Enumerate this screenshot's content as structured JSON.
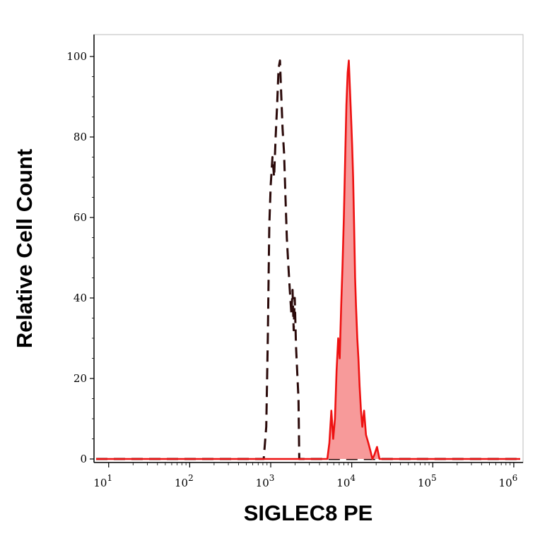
{
  "chart_data": {
    "type": "area",
    "xlabel": "SIGLEC8 PE",
    "ylabel": "Relative Cell Count",
    "x_scale": "log",
    "xlim": [
      7,
      1200000
    ],
    "ylim": [
      0,
      100
    ],
    "y_ticks": [
      0,
      20,
      40,
      60,
      80,
      100
    ],
    "x_ticks": [
      {
        "value": 10,
        "base": "10",
        "exp": "1"
      },
      {
        "value": 100,
        "base": "10",
        "exp": "2"
      },
      {
        "value": 1000,
        "base": "10",
        "exp": "3"
      },
      {
        "value": 10000,
        "base": "10",
        "exp": "4"
      },
      {
        "value": 100000,
        "base": "10",
        "exp": "5"
      },
      {
        "value": 1000000,
        "base": "10",
        "exp": "6"
      }
    ],
    "grid": false,
    "legend": "none",
    "series": [
      {
        "style": "dashed-line",
        "color": "#2b0a0a",
        "points": [
          [
            7,
            0
          ],
          [
            700,
            0
          ],
          [
            820,
            0
          ],
          [
            880,
            8
          ],
          [
            920,
            30
          ],
          [
            960,
            58
          ],
          [
            1000,
            68
          ],
          [
            1050,
            75
          ],
          [
            1100,
            70
          ],
          [
            1150,
            80
          ],
          [
            1200,
            88
          ],
          [
            1250,
            97
          ],
          [
            1300,
            99
          ],
          [
            1350,
            90
          ],
          [
            1400,
            82
          ],
          [
            1460,
            76
          ],
          [
            1520,
            65
          ],
          [
            1580,
            55
          ],
          [
            1650,
            48
          ],
          [
            1720,
            42
          ],
          [
            1800,
            36
          ],
          [
            1860,
            42
          ],
          [
            1920,
            32
          ],
          [
            1980,
            40
          ],
          [
            2050,
            28
          ],
          [
            2120,
            22
          ],
          [
            2200,
            15
          ],
          [
            2250,
            0
          ],
          [
            2400,
            0
          ],
          [
            1200000,
            0
          ]
        ]
      },
      {
        "style": "filled",
        "color": "#ee1111",
        "fill": "#f79a9a",
        "points": [
          [
            7,
            0
          ],
          [
            5000,
            0
          ],
          [
            5300,
            4
          ],
          [
            5600,
            12
          ],
          [
            5900,
            5
          ],
          [
            6200,
            10
          ],
          [
            6500,
            22
          ],
          [
            6800,
            30
          ],
          [
            7100,
            25
          ],
          [
            7400,
            38
          ],
          [
            7700,
            48
          ],
          [
            8000,
            60
          ],
          [
            8300,
            75
          ],
          [
            8600,
            88
          ],
          [
            8900,
            96
          ],
          [
            9200,
            99
          ],
          [
            9500,
            92
          ],
          [
            9800,
            85
          ],
          [
            10100,
            78
          ],
          [
            10400,
            70
          ],
          [
            10700,
            58
          ],
          [
            11000,
            45
          ],
          [
            11300,
            38
          ],
          [
            11700,
            30
          ],
          [
            12100,
            25
          ],
          [
            12500,
            18
          ],
          [
            13000,
            12
          ],
          [
            13500,
            8
          ],
          [
            14200,
            12
          ],
          [
            15000,
            6
          ],
          [
            16000,
            4
          ],
          [
            17000,
            2
          ],
          [
            18000,
            0
          ],
          [
            19000,
            1
          ],
          [
            20500,
            3
          ],
          [
            22000,
            0
          ],
          [
            1200000,
            0
          ]
        ]
      }
    ]
  }
}
